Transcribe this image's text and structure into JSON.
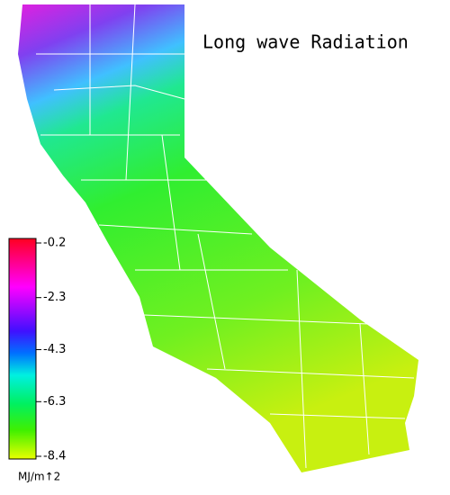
{
  "title": "Long wave Radiation",
  "colorbar": {
    "lim": [
      -8.4,
      -0.2
    ],
    "ticks": [
      -0.2,
      -2.3,
      -4.3,
      -6.3,
      -8.4
    ],
    "label": "MJ/m↑2"
  }
}
